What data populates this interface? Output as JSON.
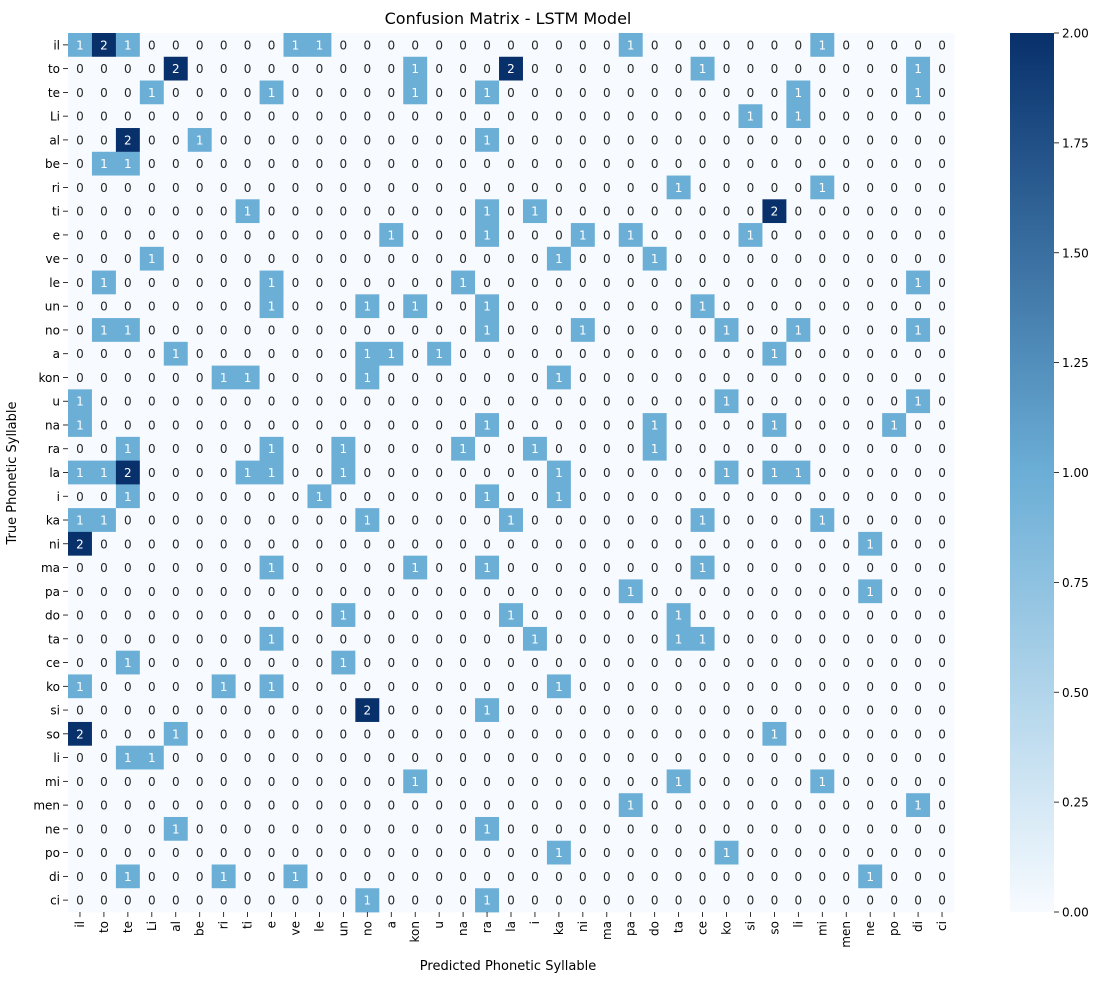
{
  "chart_data": {
    "type": "heatmap",
    "title": "Confusion Matrix - LSTM Model",
    "xlabel": "Predicted Phonetic Syllable",
    "ylabel": "True Phonetic Syllable",
    "row_labels": [
      "il",
      "to",
      "te",
      "Li",
      "al",
      "be",
      "ri",
      "ti",
      "e",
      "ve",
      "le",
      "un",
      "no",
      "a",
      "kon",
      "u",
      "na",
      "ra",
      "la",
      "i",
      "ka",
      "ni",
      "ma",
      "pa",
      "do",
      "ta",
      "ce",
      "ko",
      "si",
      "so",
      "li",
      "mi",
      "men",
      "ne",
      "po",
      "di",
      "ci"
    ],
    "col_labels": [
      "il",
      "to",
      "te",
      "Li",
      "al",
      "be",
      "ri",
      "ti",
      "e",
      "ve",
      "le",
      "un",
      "no",
      "a",
      "kon",
      "u",
      "na",
      "ra",
      "la",
      "i",
      "ka",
      "ni",
      "ma",
      "pa",
      "do",
      "ta",
      "ce",
      "ko",
      "si",
      "so",
      "li",
      "mi",
      "men",
      "ne",
      "po",
      "di",
      "ci"
    ],
    "values": [
      [
        1,
        2,
        1,
        0,
        0,
        0,
        0,
        0,
        0,
        1,
        1,
        0,
        0,
        0,
        0,
        0,
        0,
        0,
        0,
        0,
        0,
        0,
        0,
        1,
        0,
        0,
        0,
        0,
        0,
        0,
        0,
        1,
        0,
        0,
        0,
        0,
        0
      ],
      [
        0,
        0,
        0,
        0,
        2,
        0,
        0,
        0,
        0,
        0,
        0,
        0,
        0,
        0,
        1,
        0,
        0,
        0,
        2,
        0,
        0,
        0,
        0,
        0,
        0,
        0,
        1,
        0,
        0,
        0,
        0,
        0,
        0,
        0,
        0,
        1,
        0
      ],
      [
        0,
        0,
        0,
        1,
        0,
        0,
        0,
        0,
        1,
        0,
        0,
        0,
        0,
        0,
        1,
        0,
        0,
        1,
        0,
        0,
        0,
        0,
        0,
        0,
        0,
        0,
        0,
        0,
        0,
        0,
        1,
        0,
        0,
        0,
        0,
        1,
        0
      ],
      [
        0,
        0,
        0,
        0,
        0,
        0,
        0,
        0,
        0,
        0,
        0,
        0,
        0,
        0,
        0,
        0,
        0,
        0,
        0,
        0,
        0,
        0,
        0,
        0,
        0,
        0,
        0,
        0,
        1,
        0,
        1,
        0,
        0,
        0,
        0,
        0,
        0
      ],
      [
        0,
        0,
        2,
        0,
        0,
        1,
        0,
        0,
        0,
        0,
        0,
        0,
        0,
        0,
        0,
        0,
        0,
        1,
        0,
        0,
        0,
        0,
        0,
        0,
        0,
        0,
        0,
        0,
        0,
        0,
        0,
        0,
        0,
        0,
        0,
        0,
        0
      ],
      [
        0,
        1,
        1,
        0,
        0,
        0,
        0,
        0,
        0,
        0,
        0,
        0,
        0,
        0,
        0,
        0,
        0,
        0,
        0,
        0,
        0,
        0,
        0,
        0,
        0,
        0,
        0,
        0,
        0,
        0,
        0,
        0,
        0,
        0,
        0,
        0,
        0
      ],
      [
        0,
        0,
        0,
        0,
        0,
        0,
        0,
        0,
        0,
        0,
        0,
        0,
        0,
        0,
        0,
        0,
        0,
        0,
        0,
        0,
        0,
        0,
        0,
        0,
        0,
        1,
        0,
        0,
        0,
        0,
        0,
        1,
        0,
        0,
        0,
        0,
        0
      ],
      [
        0,
        0,
        0,
        0,
        0,
        0,
        0,
        1,
        0,
        0,
        0,
        0,
        0,
        0,
        0,
        0,
        0,
        1,
        0,
        1,
        0,
        0,
        0,
        0,
        0,
        0,
        0,
        0,
        0,
        2,
        0,
        0,
        0,
        0,
        0,
        0,
        0
      ],
      [
        0,
        0,
        0,
        0,
        0,
        0,
        0,
        0,
        0,
        0,
        0,
        0,
        0,
        1,
        0,
        0,
        0,
        1,
        0,
        0,
        0,
        1,
        0,
        1,
        0,
        0,
        0,
        0,
        1,
        0,
        0,
        0,
        0,
        0,
        0,
        0,
        0
      ],
      [
        0,
        0,
        0,
        1,
        0,
        0,
        0,
        0,
        0,
        0,
        0,
        0,
        0,
        0,
        0,
        0,
        0,
        0,
        0,
        0,
        1,
        0,
        0,
        0,
        1,
        0,
        0,
        0,
        0,
        0,
        0,
        0,
        0,
        0,
        0,
        0,
        0
      ],
      [
        0,
        1,
        0,
        0,
        0,
        0,
        0,
        0,
        1,
        0,
        0,
        0,
        0,
        0,
        0,
        0,
        1,
        0,
        0,
        0,
        0,
        0,
        0,
        0,
        0,
        0,
        0,
        0,
        0,
        0,
        0,
        0,
        0,
        0,
        0,
        1,
        0
      ],
      [
        0,
        0,
        0,
        0,
        0,
        0,
        0,
        0,
        1,
        0,
        0,
        0,
        1,
        0,
        1,
        0,
        0,
        1,
        0,
        0,
        0,
        0,
        0,
        0,
        0,
        0,
        1,
        0,
        0,
        0,
        0,
        0,
        0,
        0,
        0,
        0,
        0
      ],
      [
        0,
        1,
        1,
        0,
        0,
        0,
        0,
        0,
        0,
        0,
        0,
        0,
        0,
        0,
        0,
        0,
        0,
        1,
        0,
        0,
        0,
        1,
        0,
        0,
        0,
        0,
        0,
        1,
        0,
        0,
        1,
        0,
        0,
        0,
        0,
        1,
        0
      ],
      [
        0,
        0,
        0,
        0,
        1,
        0,
        0,
        0,
        0,
        0,
        0,
        0,
        1,
        1,
        0,
        1,
        0,
        0,
        0,
        0,
        0,
        0,
        0,
        0,
        0,
        0,
        0,
        0,
        0,
        1,
        0,
        0,
        0,
        0,
        0,
        0,
        0
      ],
      [
        0,
        0,
        0,
        0,
        0,
        0,
        1,
        1,
        0,
        0,
        0,
        0,
        1,
        0,
        0,
        0,
        0,
        0,
        0,
        0,
        1,
        0,
        0,
        0,
        0,
        0,
        0,
        0,
        0,
        0,
        0,
        0,
        0,
        0,
        0,
        0,
        0
      ],
      [
        1,
        0,
        0,
        0,
        0,
        0,
        0,
        0,
        0,
        0,
        0,
        0,
        0,
        0,
        0,
        0,
        0,
        0,
        0,
        0,
        0,
        0,
        0,
        0,
        0,
        0,
        0,
        1,
        0,
        0,
        0,
        0,
        0,
        0,
        0,
        1,
        0
      ],
      [
        1,
        0,
        0,
        0,
        0,
        0,
        0,
        0,
        0,
        0,
        0,
        0,
        0,
        0,
        0,
        0,
        0,
        1,
        0,
        0,
        0,
        0,
        0,
        0,
        1,
        0,
        0,
        0,
        0,
        1,
        0,
        0,
        0,
        0,
        1,
        0,
        0
      ],
      [
        0,
        0,
        1,
        0,
        0,
        0,
        0,
        0,
        1,
        0,
        0,
        1,
        0,
        0,
        0,
        0,
        1,
        0,
        0,
        1,
        0,
        0,
        0,
        0,
        1,
        0,
        0,
        0,
        0,
        0,
        0,
        0,
        0,
        0,
        0,
        0,
        0
      ],
      [
        1,
        1,
        2,
        0,
        0,
        0,
        0,
        1,
        1,
        0,
        0,
        1,
        0,
        0,
        0,
        0,
        0,
        0,
        0,
        0,
        1,
        0,
        0,
        0,
        0,
        0,
        0,
        1,
        0,
        1,
        1,
        0,
        0,
        0,
        0,
        0,
        0
      ],
      [
        0,
        0,
        1,
        0,
        0,
        0,
        0,
        0,
        0,
        0,
        1,
        0,
        0,
        0,
        0,
        0,
        0,
        1,
        0,
        0,
        1,
        0,
        0,
        0,
        0,
        0,
        0,
        0,
        0,
        0,
        0,
        0,
        0,
        0,
        0,
        0,
        0
      ],
      [
        1,
        1,
        0,
        0,
        0,
        0,
        0,
        0,
        0,
        0,
        0,
        0,
        1,
        0,
        0,
        0,
        0,
        0,
        1,
        0,
        0,
        0,
        0,
        0,
        0,
        0,
        1,
        0,
        0,
        0,
        0,
        1,
        0,
        0,
        0,
        0,
        0
      ],
      [
        2,
        0,
        0,
        0,
        0,
        0,
        0,
        0,
        0,
        0,
        0,
        0,
        0,
        0,
        0,
        0,
        0,
        0,
        0,
        0,
        0,
        0,
        0,
        0,
        0,
        0,
        0,
        0,
        0,
        0,
        0,
        0,
        0,
        1,
        0,
        0,
        0
      ],
      [
        0,
        0,
        0,
        0,
        0,
        0,
        0,
        0,
        1,
        0,
        0,
        0,
        0,
        0,
        1,
        0,
        0,
        1,
        0,
        0,
        0,
        0,
        0,
        0,
        0,
        0,
        1,
        0,
        0,
        0,
        0,
        0,
        0,
        0,
        0,
        0,
        0
      ],
      [
        0,
        0,
        0,
        0,
        0,
        0,
        0,
        0,
        0,
        0,
        0,
        0,
        0,
        0,
        0,
        0,
        0,
        0,
        0,
        0,
        0,
        0,
        0,
        1,
        0,
        0,
        0,
        0,
        0,
        0,
        0,
        0,
        0,
        1,
        0,
        0,
        0
      ],
      [
        0,
        0,
        0,
        0,
        0,
        0,
        0,
        0,
        0,
        0,
        0,
        1,
        0,
        0,
        0,
        0,
        0,
        0,
        1,
        0,
        0,
        0,
        0,
        0,
        0,
        1,
        0,
        0,
        0,
        0,
        0,
        0,
        0,
        0,
        0,
        0,
        0
      ],
      [
        0,
        0,
        0,
        0,
        0,
        0,
        0,
        0,
        1,
        0,
        0,
        0,
        0,
        0,
        0,
        0,
        0,
        0,
        0,
        1,
        0,
        0,
        0,
        0,
        0,
        1,
        1,
        0,
        0,
        0,
        0,
        0,
        0,
        0,
        0,
        0,
        0
      ],
      [
        0,
        0,
        1,
        0,
        0,
        0,
        0,
        0,
        0,
        0,
        0,
        1,
        0,
        0,
        0,
        0,
        0,
        0,
        0,
        0,
        0,
        0,
        0,
        0,
        0,
        0,
        0,
        0,
        0,
        0,
        0,
        0,
        0,
        0,
        0,
        0,
        0
      ],
      [
        1,
        0,
        0,
        0,
        0,
        0,
        1,
        0,
        1,
        0,
        0,
        0,
        0,
        0,
        0,
        0,
        0,
        0,
        0,
        0,
        1,
        0,
        0,
        0,
        0,
        0,
        0,
        0,
        0,
        0,
        0,
        0,
        0,
        0,
        0,
        0,
        0
      ],
      [
        0,
        0,
        0,
        0,
        0,
        0,
        0,
        0,
        0,
        0,
        0,
        0,
        2,
        0,
        0,
        0,
        0,
        1,
        0,
        0,
        0,
        0,
        0,
        0,
        0,
        0,
        0,
        0,
        0,
        0,
        0,
        0,
        0,
        0,
        0,
        0,
        0
      ],
      [
        2,
        0,
        0,
        0,
        1,
        0,
        0,
        0,
        0,
        0,
        0,
        0,
        0,
        0,
        0,
        0,
        0,
        0,
        0,
        0,
        0,
        0,
        0,
        0,
        0,
        0,
        0,
        0,
        0,
        1,
        0,
        0,
        0,
        0,
        0,
        0,
        0
      ],
      [
        0,
        0,
        1,
        1,
        0,
        0,
        0,
        0,
        0,
        0,
        0,
        0,
        0,
        0,
        0,
        0,
        0,
        0,
        0,
        0,
        0,
        0,
        0,
        0,
        0,
        0,
        0,
        0,
        0,
        0,
        0,
        0,
        0,
        0,
        0,
        0,
        0
      ],
      [
        0,
        0,
        0,
        0,
        0,
        0,
        0,
        0,
        0,
        0,
        0,
        0,
        0,
        0,
        1,
        0,
        0,
        0,
        0,
        0,
        0,
        0,
        0,
        0,
        0,
        1,
        0,
        0,
        0,
        0,
        0,
        1,
        0,
        0,
        0,
        0,
        0
      ],
      [
        0,
        0,
        0,
        0,
        0,
        0,
        0,
        0,
        0,
        0,
        0,
        0,
        0,
        0,
        0,
        0,
        0,
        0,
        0,
        0,
        0,
        0,
        0,
        1,
        0,
        0,
        0,
        0,
        0,
        0,
        0,
        0,
        0,
        0,
        0,
        1,
        0
      ],
      [
        0,
        0,
        0,
        0,
        1,
        0,
        0,
        0,
        0,
        0,
        0,
        0,
        0,
        0,
        0,
        0,
        0,
        1,
        0,
        0,
        0,
        0,
        0,
        0,
        0,
        0,
        0,
        0,
        0,
        0,
        0,
        0,
        0,
        0,
        0,
        0,
        0
      ],
      [
        0,
        0,
        0,
        0,
        0,
        0,
        0,
        0,
        0,
        0,
        0,
        0,
        0,
        0,
        0,
        0,
        0,
        0,
        0,
        0,
        1,
        0,
        0,
        0,
        0,
        0,
        0,
        1,
        0,
        0,
        0,
        0,
        0,
        0,
        0,
        0,
        0
      ],
      [
        0,
        0,
        1,
        0,
        0,
        0,
        1,
        0,
        0,
        1,
        0,
        0,
        0,
        0,
        0,
        0,
        0,
        0,
        0,
        0,
        0,
        0,
        0,
        0,
        0,
        0,
        0,
        0,
        0,
        0,
        0,
        0,
        0,
        1,
        0,
        0,
        0
      ],
      [
        0,
        0,
        0,
        0,
        0,
        0,
        0,
        0,
        0,
        0,
        0,
        0,
        1,
        0,
        0,
        0,
        0,
        1,
        0,
        0,
        0,
        0,
        0,
        0,
        0,
        0,
        0,
        0,
        0,
        0,
        0,
        0,
        0,
        0,
        0,
        0,
        0
      ]
    ],
    "value_range": [
      0,
      2
    ],
    "colormap": {
      "low": "#f7fbff",
      "mid": "#6baed6",
      "high": "#08306b"
    },
    "colorbar_ticks": [
      "0.00",
      "0.25",
      "0.50",
      "0.75",
      "1.00",
      "1.25",
      "1.50",
      "1.75",
      "2.00"
    ],
    "grid": false
  }
}
